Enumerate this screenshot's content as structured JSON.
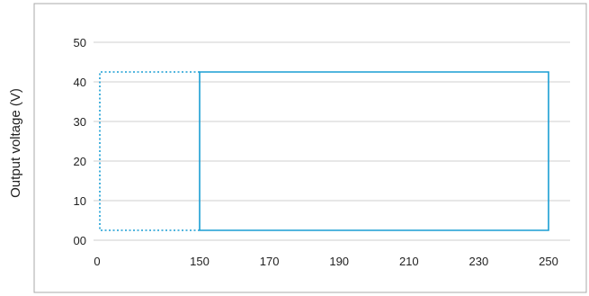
{
  "chart_data": {
    "type": "line",
    "title": "",
    "xlabel": "",
    "ylabel": "Output voltage (V)",
    "x_ticks": [
      {
        "value": 0,
        "label": "0"
      },
      {
        "value": 150,
        "label": "150"
      },
      {
        "value": 170,
        "label": "170"
      },
      {
        "value": 190,
        "label": "190"
      },
      {
        "value": 210,
        "label": "210"
      },
      {
        "value": 230,
        "label": "230"
      },
      {
        "value": 250,
        "label": "250"
      }
    ],
    "y_ticks": [
      {
        "value": 0,
        "label": "00"
      },
      {
        "value": 10,
        "label": "10"
      },
      {
        "value": 20,
        "label": "20"
      },
      {
        "value": 30,
        "label": "30"
      },
      {
        "value": 40,
        "label": "40"
      },
      {
        "value": 50,
        "label": "50"
      }
    ],
    "ylim": [
      0,
      50
    ],
    "grid": true,
    "series": [
      {
        "style": "dotted",
        "color": "#1a9ed4",
        "points": [
          [
            150,
            2.5
          ],
          [
            0,
            2.5
          ],
          [
            0,
            42.5
          ],
          [
            150,
            42.5
          ]
        ]
      },
      {
        "style": "solid",
        "color": "#1a9ed4",
        "points": [
          [
            150,
            2.5
          ],
          [
            250,
            2.5
          ],
          [
            250,
            42.5
          ],
          [
            150,
            42.5
          ],
          [
            150,
            2.5
          ]
        ]
      }
    ],
    "colors": {
      "gridline": "#cfcfcf",
      "frame": "#a8a8a8"
    }
  }
}
